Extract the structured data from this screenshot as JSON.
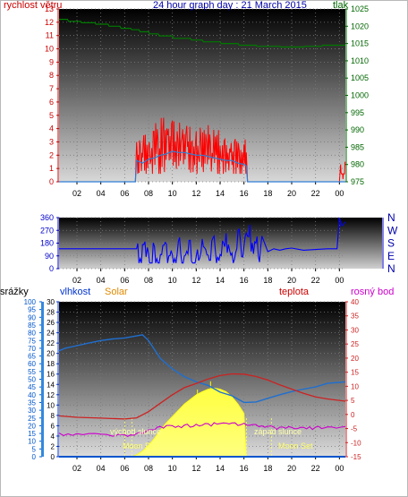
{
  "header": {
    "title": "24 hour graph day : 21 March 2015",
    "wind_label": "rychlost větru",
    "pressure_label": "tlak"
  },
  "lower_header": {
    "rain_label": "srážky",
    "humidity_label": "vlhkost",
    "solar_label": "Solar",
    "temp_label": "teplota",
    "dew_label": "rosný bod"
  },
  "annotations": {
    "sunrise": "východ slunce",
    "sunset": "západ slunce",
    "moonrise": "Moon Ri",
    "moonset": "Moon Set"
  },
  "colors": {
    "wind": "#ff0000",
    "gust_avg": "#2f7fd6",
    "pressure": "#007a00",
    "direction": "#0000ff",
    "humidity": "#1f6fd0",
    "temperature": "#cc2222",
    "dew": "#cc00cc",
    "solar": "#ffff33",
    "rain": "#0055cc"
  },
  "chart_data": [
    {
      "type": "line",
      "name": "wind-pressure",
      "title": "24 hour graph day : 21 March 2015",
      "x_ticks": [
        "02",
        "04",
        "06",
        "08",
        "10",
        "12",
        "14",
        "16",
        "18",
        "20",
        "22",
        "00"
      ],
      "y_left": {
        "label": "rychlost větru",
        "ticks": [
          0,
          1,
          2,
          3,
          4,
          5,
          6,
          7,
          8,
          9,
          10,
          11,
          12,
          13
        ],
        "ylim": [
          0,
          13
        ]
      },
      "y_right": {
        "label": "tlak",
        "ticks": [
          975,
          980,
          985,
          990,
          995,
          1000,
          1005,
          1010,
          1015,
          1020,
          1025
        ],
        "ylim": [
          975,
          1025
        ]
      },
      "x_range_hours": [
        0.5,
        24.5
      ],
      "series": [
        {
          "name": "rychlost větru",
          "axis": "left",
          "x": [
            0.5,
            6.9,
            7.0,
            7.3,
            7.6,
            8.0,
            8.4,
            8.8,
            9.2,
            9.6,
            10.0,
            10.4,
            10.8,
            11.2,
            11.6,
            12.0,
            12.4,
            12.8,
            13.2,
            13.6,
            14.0,
            14.4,
            14.8,
            15.2,
            15.6,
            16.0,
            16.2,
            16.3,
            24.0,
            24.1,
            24.3,
            24.5
          ],
          "y": [
            0,
            0,
            3,
            2.8,
            3.5,
            2.6,
            3.8,
            3.2,
            4.0,
            3.5,
            4.6,
            3.8,
            3.3,
            4.2,
            3.0,
            3.8,
            3.1,
            3.6,
            2.9,
            3.4,
            2.7,
            3.2,
            2.5,
            3.0,
            2.4,
            2.8,
            2.2,
            0,
            0,
            1.3,
            0.2,
            1.5
          ]
        },
        {
          "name": "",
          "axis": "left",
          "x": [
            0.5,
            6.9,
            7.0,
            7.5,
            8.0,
            8.5,
            9.0,
            9.5,
            10.0,
            10.5,
            11.0,
            11.5,
            12.0,
            12.5,
            13.0,
            13.5,
            14.0,
            14.5,
            15.0,
            15.5,
            16.0,
            16.2,
            16.3,
            24.5
          ],
          "y": [
            0,
            0,
            1.6,
            1.4,
            1.7,
            1.8,
            2.0,
            2.1,
            2.3,
            2.2,
            2.2,
            2.1,
            2.0,
            2.0,
            1.9,
            1.8,
            1.7,
            1.6,
            1.6,
            1.4,
            1.3,
            1.2,
            0,
            0
          ]
        },
        {
          "name": "tlak",
          "axis": "right",
          "x": [
            0.5,
            1.2,
            1.3,
            2.3,
            2.4,
            3.5,
            3.6,
            4.6,
            4.7,
            5.6,
            5.7,
            6.5,
            6.6,
            7.2,
            7.3,
            8.0,
            8.1,
            8.8,
            8.9,
            10.0,
            10.1,
            11.5,
            11.6,
            12.5,
            12.6,
            14.0,
            14.1,
            15.5,
            15.6,
            17.0,
            17.1,
            19.0,
            19.1,
            21.0,
            21.1,
            22.5,
            22.6,
            24.5
          ],
          "y": [
            1022,
            1022,
            1021.4,
            1021.4,
            1021,
            1021,
            1020.6,
            1020.6,
            1020,
            1020,
            1019.4,
            1019.4,
            1019,
            1019,
            1018.4,
            1018.4,
            1017.8,
            1017.8,
            1017.2,
            1017.2,
            1016.5,
            1016.5,
            1016,
            1016,
            1015.5,
            1015.5,
            1015,
            1015,
            1014.5,
            1014.5,
            1014.2,
            1014.2,
            1014,
            1014,
            1014.2,
            1014.2,
            1014.5,
            1014.5
          ]
        }
      ]
    },
    {
      "type": "line",
      "name": "wind-direction",
      "x_ticks": [
        "02",
        "04",
        "06",
        "08",
        "10",
        "12",
        "14",
        "16",
        "18",
        "20",
        "22",
        "00"
      ],
      "y_left": {
        "ticks": [
          0,
          90,
          180,
          270,
          360
        ],
        "ylim": [
          0,
          360
        ]
      },
      "y_right": {
        "ticks": [
          "N",
          "W",
          "S",
          "E",
          "N"
        ]
      },
      "series": [
        {
          "name": "",
          "axis": "left",
          "x": [
            0.5,
            3,
            6,
            7,
            7.5,
            8,
            8.5,
            9,
            9.5,
            10,
            10.5,
            11,
            11.5,
            12,
            12.5,
            13,
            13.5,
            14,
            14.5,
            15,
            15.5,
            16,
            16.5,
            17,
            17.5,
            18,
            18.5,
            19,
            19.5,
            20,
            21,
            22,
            23,
            23.8,
            24,
            24.2,
            24.5
          ],
          "y": [
            140,
            140,
            140,
            140,
            170,
            110,
            155,
            100,
            175,
            95,
            190,
            90,
            200,
            85,
            210,
            95,
            230,
            100,
            250,
            110,
            270,
            160,
            310,
            180,
            230,
            120,
            140,
            130,
            140,
            145,
            130,
            135,
            140,
            140,
            360,
            300,
            330
          ]
        }
      ]
    },
    {
      "type": "line",
      "name": "rain-humidity-temperature",
      "x_ticks": [
        "02",
        "04",
        "06",
        "08",
        "10",
        "12",
        "14",
        "16",
        "18",
        "20",
        "22",
        "00"
      ],
      "y_left_rain": {
        "label": "srážky",
        "ticks": [
          0,
          5,
          10,
          15,
          20,
          25,
          30,
          35,
          40,
          45,
          50,
          55,
          60,
          65,
          70,
          75,
          80,
          85,
          90,
          95,
          100
        ]
      },
      "y_left_hum": {
        "label": "vlhkost",
        "ticks": [
          0,
          2,
          4,
          6,
          8,
          10,
          12,
          14,
          16,
          18,
          20,
          22,
          24,
          26,
          28,
          30
        ]
      },
      "y_right": {
        "label": "teplota",
        "ticks": [
          -15,
          -10,
          -5,
          0,
          5,
          10,
          15,
          20,
          25,
          30,
          35,
          40
        ],
        "ylim": [
          -15,
          40
        ]
      },
      "series": [
        {
          "name": "vlhkost",
          "axis": "hum",
          "x": [
            0.5,
            1,
            2,
            3,
            4,
            5,
            6,
            7,
            7.5,
            8,
            9,
            10,
            11,
            12,
            13,
            14,
            15,
            16,
            17,
            18,
            19,
            20,
            21,
            22,
            23,
            24.5
          ],
          "y": [
            20.5,
            21,
            21.5,
            22,
            22.5,
            22.8,
            23,
            23.4,
            23.6,
            22.5,
            19,
            17,
            15.5,
            14.5,
            13.8,
            12.5,
            11.8,
            10.5,
            10.6,
            11.3,
            12,
            12.6,
            13.1,
            13.5,
            14.2,
            14.5
          ]
        },
        {
          "name": "teplota",
          "axis": "right",
          "x": [
            0.5,
            2,
            4,
            6,
            7,
            8,
            9,
            10,
            11,
            12,
            13,
            14,
            15,
            16,
            17,
            18,
            19,
            20,
            21,
            22,
            23,
            24.5
          ],
          "y": [
            -0.5,
            -1,
            -1.3,
            -1.6,
            -1.2,
            1,
            4,
            7,
            9.5,
            11,
            12.6,
            13.8,
            14.4,
            14.3,
            13.5,
            12.2,
            10.5,
            9,
            7.5,
            6.2,
            5.5,
            4.7
          ]
        },
        {
          "name": "rosný bod",
          "axis": "right",
          "x": [
            0.5,
            2,
            4,
            6,
            7,
            8,
            9,
            10,
            11,
            12,
            13,
            14,
            15,
            16,
            17,
            18,
            19,
            20,
            21,
            22,
            23,
            24.5
          ],
          "y": [
            -6.6,
            -6.8,
            -7,
            -7.2,
            -6.8,
            -5.5,
            -4.3,
            -4,
            -3.8,
            -3.5,
            -3.3,
            -3.2,
            -3,
            -3.1,
            -3.6,
            -4.2,
            -4.5,
            -4.6,
            -4.6,
            -4.5,
            -4.4,
            -4.3
          ]
        },
        {
          "name": "Solar",
          "axis": "hum",
          "x": [
            6.6,
            7,
            7.5,
            8,
            8.5,
            9,
            9.5,
            10,
            10.5,
            11,
            11.5,
            12,
            12.5,
            13,
            13.5,
            14,
            14.5,
            15,
            15.5,
            16,
            16.2
          ],
          "y": [
            0,
            0.4,
            1.1,
            2.2,
            3.6,
            5.2,
            6.6,
            7.8,
            9,
            10.2,
            11.1,
            12,
            12.6,
            13.1,
            13.3,
            13.1,
            12.6,
            11.6,
            10.2,
            8.4,
            0
          ]
        },
        {
          "name": "srážky",
          "axis": "rain",
          "x": [
            0.5,
            24.5
          ],
          "y": [
            0,
            0
          ]
        }
      ]
    }
  ]
}
